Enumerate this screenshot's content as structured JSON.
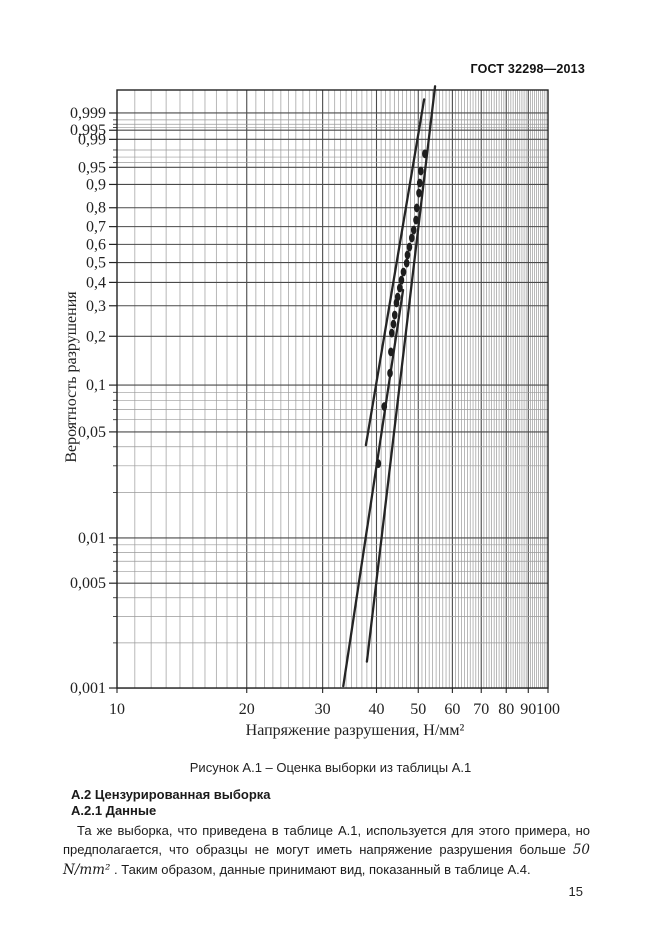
{
  "page": {
    "header": "ГОСТ 32298—2013",
    "page_number": "15"
  },
  "figure": {
    "caption": "Рисунок А.1 – Оценка выборки из таблицы А.1"
  },
  "section": {
    "heading": "А.2 Цензурированная выборка",
    "subheading": "А.2.1 Данные",
    "para_before": "Та же выборка, что приведена в таблице А.1, используется для этого примера, но предполагается, что образцы не могут иметь напряжение разрушения больше ",
    "para_math": "50 N/mm²",
    "para_after": " . Таким образом, данные принимают вид, показанный в таблице А.4."
  },
  "chart_data": {
    "type": "scatter",
    "title": "Рисунок А.1 – Оценка выборки из таблицы А.1",
    "xlabel": "Напряжение разрушения, Н/мм²",
    "ylabel": "Вероятность разрушения",
    "x_scale": "log",
    "x_range": [
      10,
      100
    ],
    "y_scale": "weibull-probability",
    "y_range": [
      0.001,
      0.9999
    ],
    "grid": "on",
    "x_ticks": [
      10,
      20,
      30,
      40,
      50,
      60,
      70,
      80,
      90,
      100
    ],
    "x_tick_labels": [
      "10",
      "20",
      "30",
      "40",
      "50",
      "60",
      "70",
      "80",
      "90",
      "100"
    ],
    "y_ticks": [
      0.999,
      0.995,
      0.99,
      0.95,
      0.9,
      0.8,
      0.7,
      0.6,
      0.5,
      0.4,
      0.3,
      0.2,
      0.1,
      0.05,
      0.01,
      0.005,
      0.001
    ],
    "y_tick_labels": [
      "0,999",
      "0,995",
      "0,99",
      "0,95",
      "0,9",
      "0,8",
      "0,7",
      "0,6",
      "0,5",
      "0,4",
      "0,3",
      "0,2",
      "0,1",
      "0,05",
      "0,01",
      "0,005",
      "0,001"
    ],
    "y_minor_gridlines": [
      0.998,
      0.997,
      0.996,
      0.98,
      0.97,
      0.96,
      0.09,
      0.08,
      0.07,
      0.06,
      0.04,
      0.03,
      0.02,
      0.009,
      0.008,
      0.007,
      0.006,
      0.004,
      0.003,
      0.002
    ],
    "points": [
      [
        40.4,
        0.031
      ],
      [
        41.7,
        0.073
      ],
      [
        43.0,
        0.119
      ],
      [
        43.2,
        0.161
      ],
      [
        43.4,
        0.209
      ],
      [
        43.8,
        0.236
      ],
      [
        44.1,
        0.266
      ],
      [
        44.5,
        0.311
      ],
      [
        44.8,
        0.335
      ],
      [
        45.3,
        0.374
      ],
      [
        45.7,
        0.411
      ],
      [
        46.2,
        0.451
      ],
      [
        47.0,
        0.497
      ],
      [
        47.2,
        0.541
      ],
      [
        47.7,
        0.585
      ],
      [
        48.3,
        0.636
      ],
      [
        48.8,
        0.681
      ],
      [
        49.4,
        0.736
      ],
      [
        49.6,
        0.799
      ],
      [
        50.2,
        0.867
      ],
      [
        50.4,
        0.905
      ],
      [
        50.7,
        0.941
      ],
      [
        51.8,
        0.975
      ]
    ],
    "lines": [
      {
        "name": "ml-fit-line",
        "x": [
          54.7,
          38.0
        ],
        "p": [
          0.99997,
          0.0015
        ]
      },
      {
        "name": "confidence-bound-upper-left",
        "x": [
          51.6,
          37.8
        ],
        "p": [
          0.9998,
          0.041
        ]
      },
      {
        "name": "confidence-bound-lower-left",
        "x": [
          46.1,
          33.5
        ],
        "p": [
          0.365,
          0.00103
        ]
      }
    ],
    "legend": "none"
  }
}
